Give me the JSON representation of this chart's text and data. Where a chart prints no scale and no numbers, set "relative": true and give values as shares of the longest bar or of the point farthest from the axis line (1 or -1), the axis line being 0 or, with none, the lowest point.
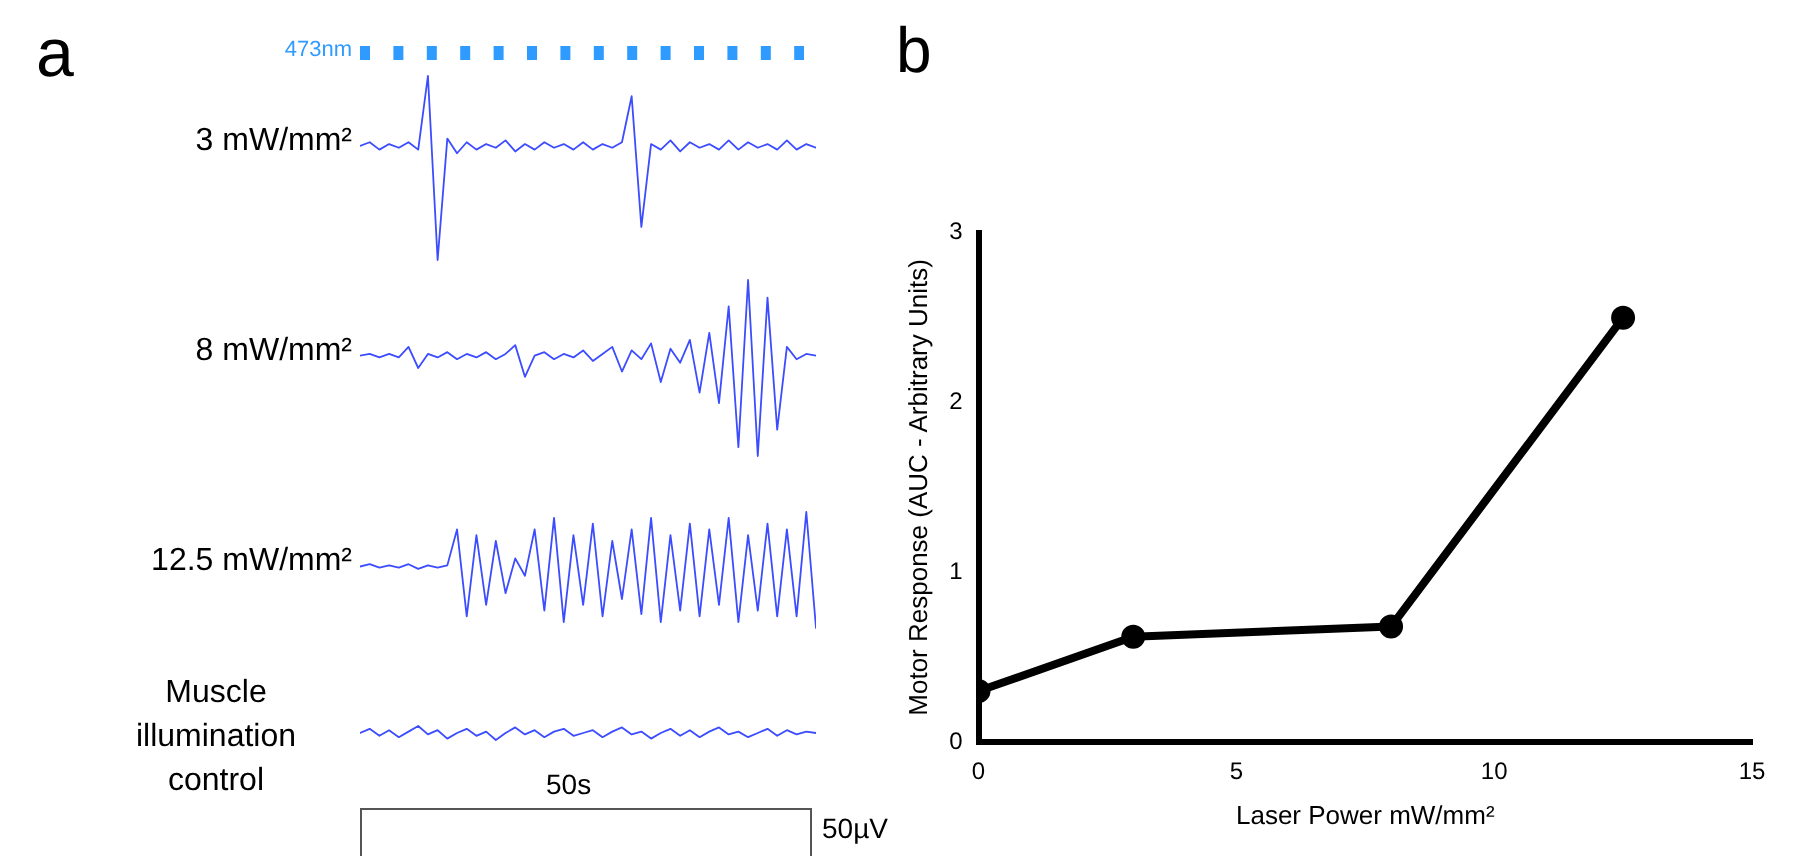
{
  "chart_data": [
    {
      "type": "other",
      "title": "a",
      "annotations": [
        "473nm",
        "50s",
        "50µV"
      ]
    },
    {
      "type": "line",
      "title": "3 mW/mm²",
      "relative": true,
      "categories": [
        null,
        null,
        null,
        null,
        null,
        null,
        null,
        null,
        null,
        null,
        null,
        null,
        null,
        null,
        null,
        null,
        null,
        null,
        null,
        null,
        null,
        null,
        null,
        null,
        null,
        null,
        null,
        null,
        null,
        null,
        null,
        null,
        null,
        null,
        null,
        null,
        null,
        null,
        null,
        null,
        null,
        null,
        null,
        null,
        null,
        null,
        null,
        null
      ],
      "series": [
        {
          "color": "#3c4cff",
          "values": [
            0.62,
            0.64,
            0.6,
            0.63,
            0.61,
            0.64,
            0.6,
            1,
            0,
            0.66,
            0.58,
            0.64,
            0.6,
            0.63,
            0.61,
            0.65,
            0.59,
            0.63,
            0.6,
            0.64,
            0.61,
            0.63,
            0.6,
            0.64,
            0.6,
            0.63,
            0.61,
            0.64,
            0.89,
            0.18,
            0.63,
            0.6,
            0.65,
            0.59,
            0.64,
            0.61,
            0.63,
            0.6,
            0.65,
            0.6,
            0.64,
            0.61,
            0.63,
            0.6,
            0.65,
            0.6,
            0.63,
            0.61
          ]
        }
      ]
    },
    {
      "type": "line",
      "title": "8 mW/mm²",
      "relative": true,
      "categories": [
        null,
        null,
        null,
        null,
        null,
        null,
        null,
        null,
        null,
        null,
        null,
        null,
        null,
        null,
        null,
        null,
        null,
        null,
        null,
        null,
        null,
        null,
        null,
        null,
        null,
        null,
        null,
        null,
        null,
        null,
        null,
        null,
        null,
        null,
        null,
        null,
        null,
        null,
        null,
        null,
        null,
        null,
        null,
        null,
        null,
        null,
        null,
        null
      ],
      "series": [
        {
          "color": "#3c4cff",
          "values": [
            0.57,
            0.58,
            0.56,
            0.58,
            0.56,
            0.62,
            0.5,
            0.58,
            0.56,
            0.59,
            0.55,
            0.58,
            0.56,
            0.59,
            0.55,
            0.58,
            0.63,
            0.45,
            0.57,
            0.59,
            0.55,
            0.58,
            0.56,
            0.6,
            0.54,
            0.58,
            0.62,
            0.48,
            0.6,
            0.55,
            0.64,
            0.42,
            0.61,
            0.53,
            0.66,
            0.36,
            0.7,
            0.3,
            0.85,
            0.05,
            1,
            0,
            0.9,
            0.15,
            0.62,
            0.55,
            0.58,
            0.57
          ]
        }
      ]
    },
    {
      "type": "line",
      "title": "12.5 mW/mm²",
      "relative": true,
      "categories": [
        null,
        null,
        null,
        null,
        null,
        null,
        null,
        null,
        null,
        null,
        null,
        null,
        null,
        null,
        null,
        null,
        null,
        null,
        null,
        null,
        null,
        null,
        null,
        null,
        null,
        null,
        null,
        null,
        null,
        null,
        null,
        null,
        null,
        null,
        null,
        null,
        null,
        null,
        null,
        null,
        null,
        null,
        null,
        null,
        null,
        null,
        null,
        null
      ],
      "series": [
        {
          "color": "#3c4cff",
          "values": [
            0.53,
            0.55,
            0.52,
            0.54,
            0.52,
            0.55,
            0.51,
            0.54,
            0.52,
            0.54,
            0.85,
            0.1,
            0.8,
            0.2,
            0.75,
            0.3,
            0.6,
            0.45,
            0.85,
            0.15,
            0.95,
            0.05,
            0.8,
            0.2,
            0.9,
            0.1,
            0.75,
            0.25,
            0.85,
            0.12,
            0.95,
            0.05,
            0.8,
            0.15,
            0.9,
            0.1,
            0.85,
            0.2,
            0.95,
            0.05,
            0.8,
            0.15,
            0.9,
            0.1,
            0.85,
            0.1,
            1,
            0
          ]
        }
      ]
    },
    {
      "type": "line",
      "title": "Muscle illumination control",
      "relative": true,
      "categories": [
        null,
        null,
        null,
        null,
        null,
        null,
        null,
        null,
        null,
        null,
        null,
        null,
        null,
        null,
        null,
        null,
        null,
        null,
        null,
        null,
        null,
        null,
        null,
        null,
        null,
        null,
        null,
        null,
        null,
        null,
        null,
        null,
        null,
        null,
        null,
        null,
        null,
        null,
        null,
        null,
        null,
        null,
        null,
        null,
        null,
        null,
        null,
        null
      ],
      "series": [
        {
          "color": "#3c4cff",
          "values": [
            0.5,
            0.8,
            0.3,
            0.7,
            0.2,
            0.6,
            1,
            0.4,
            0.7,
            0.1,
            0.5,
            0.8,
            0.3,
            0.6,
            0,
            0.5,
            0.9,
            0.4,
            0.7,
            0.2,
            0.6,
            0.8,
            0.3,
            0.5,
            0.7,
            0.2,
            0.6,
            0.9,
            0.4,
            0.6,
            0.1,
            0.5,
            0.8,
            0.3,
            0.7,
            0.2,
            0.6,
            0.9,
            0.4,
            0.6,
            0.2,
            0.5,
            0.8,
            0.3,
            0.7,
            0.4,
            0.6,
            0.5
          ]
        }
      ]
    },
    {
      "type": "line",
      "title": "b",
      "xlabel": "Laser Power mW/mm²",
      "ylabel": "Motor Response (AUC - Arbitrary Units)",
      "x": [
        0,
        3,
        8,
        12.5
      ],
      "series": [
        {
          "color": "#000000",
          "values": [
            0.3,
            0.62,
            0.68,
            2.5
          ]
        }
      ],
      "xlim": [
        0,
        15
      ],
      "xticks": [
        0,
        5,
        10,
        15
      ],
      "ylim": [
        0,
        3
      ],
      "yticks": [
        0,
        1,
        2,
        3
      ],
      "marker": "circle",
      "line_style": "solid"
    }
  ]
}
